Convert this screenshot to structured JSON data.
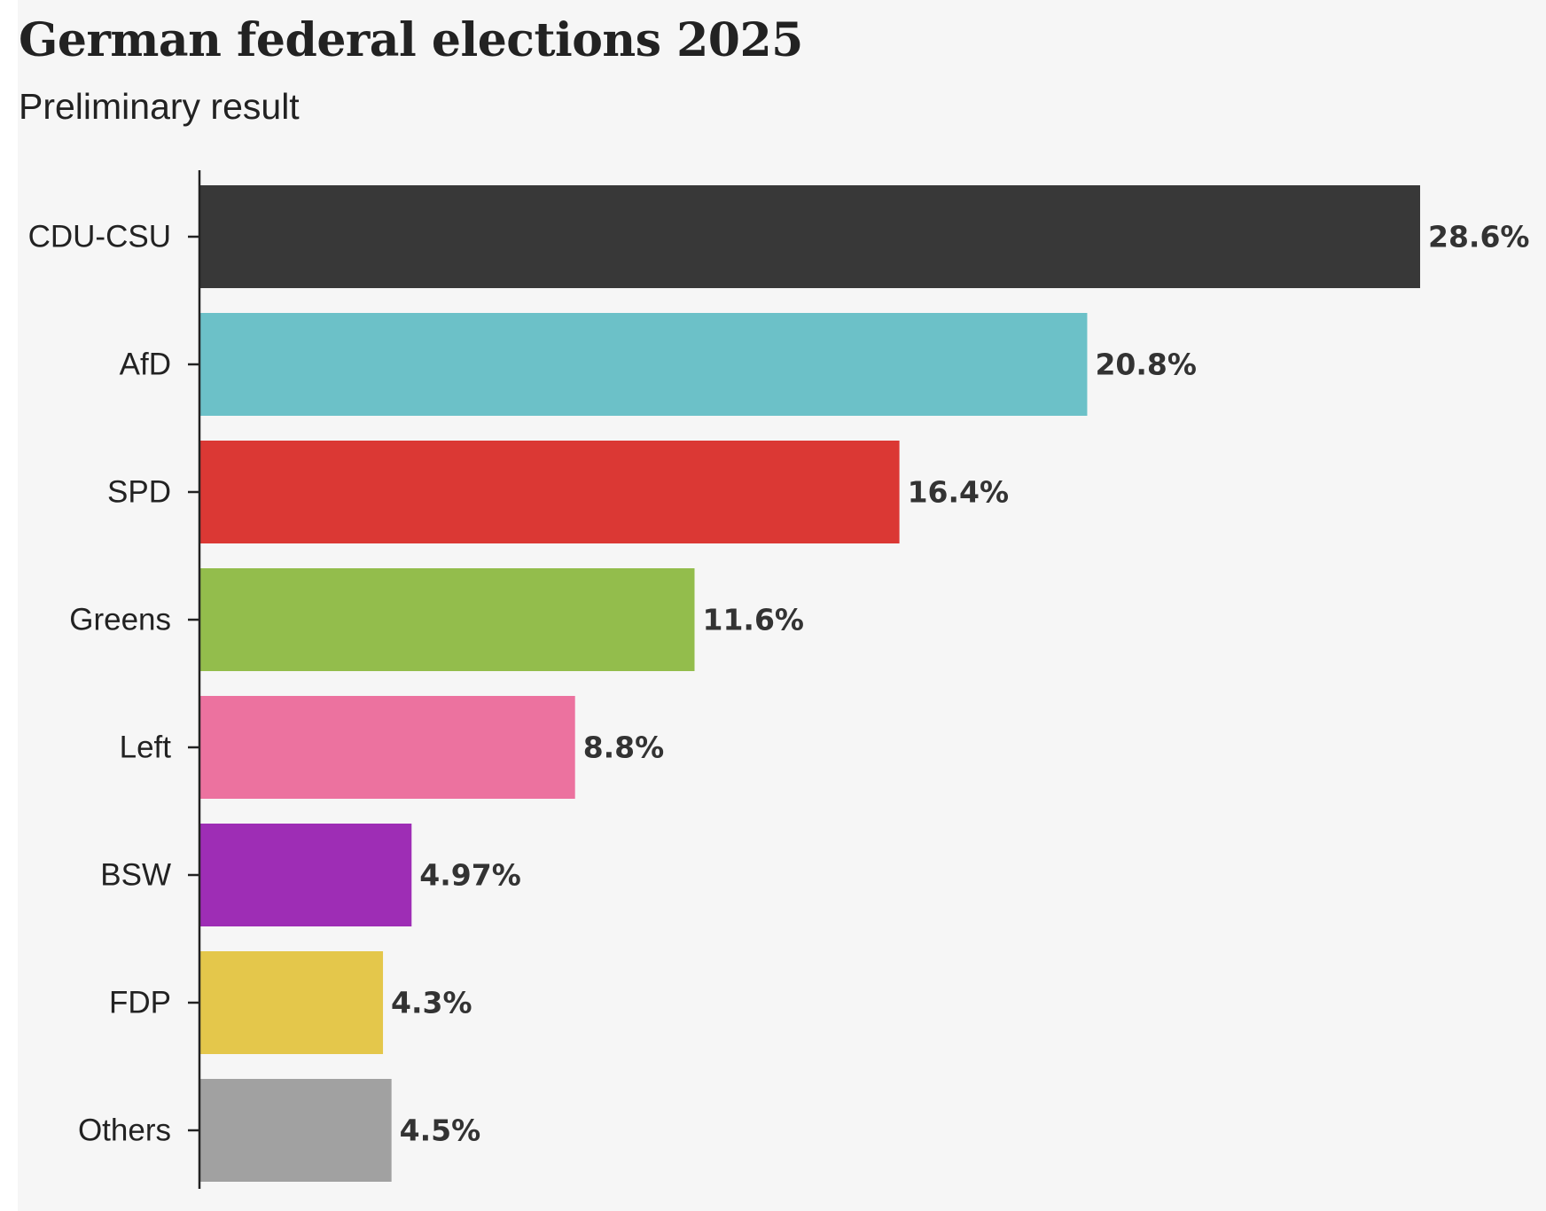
{
  "chart_data": {
    "type": "bar",
    "orientation": "horizontal",
    "title": "German federal elections 2025",
    "subtitle": "Preliminary result",
    "categories": [
      "CDU-CSU",
      "AfD",
      "SPD",
      "Greens",
      "Left",
      "BSW",
      "FDP",
      "Others"
    ],
    "values": [
      28.6,
      20.8,
      16.4,
      11.6,
      8.8,
      4.97,
      4.3,
      4.5
    ],
    "value_labels": [
      "28.6%",
      "20.8%",
      "16.4%",
      "11.6%",
      "8.8%",
      "4.97%",
      "4.3%",
      "4.5%"
    ],
    "colors": [
      "#383838",
      "#6cc1c8",
      "#db3834",
      "#93bd4c",
      "#ec729f",
      "#9e2db5",
      "#e4c74b",
      "#a1a1a1"
    ],
    "xlabel": "",
    "ylabel": "",
    "xlim": [
      0,
      28.6
    ],
    "grid": false,
    "legend": "none"
  }
}
